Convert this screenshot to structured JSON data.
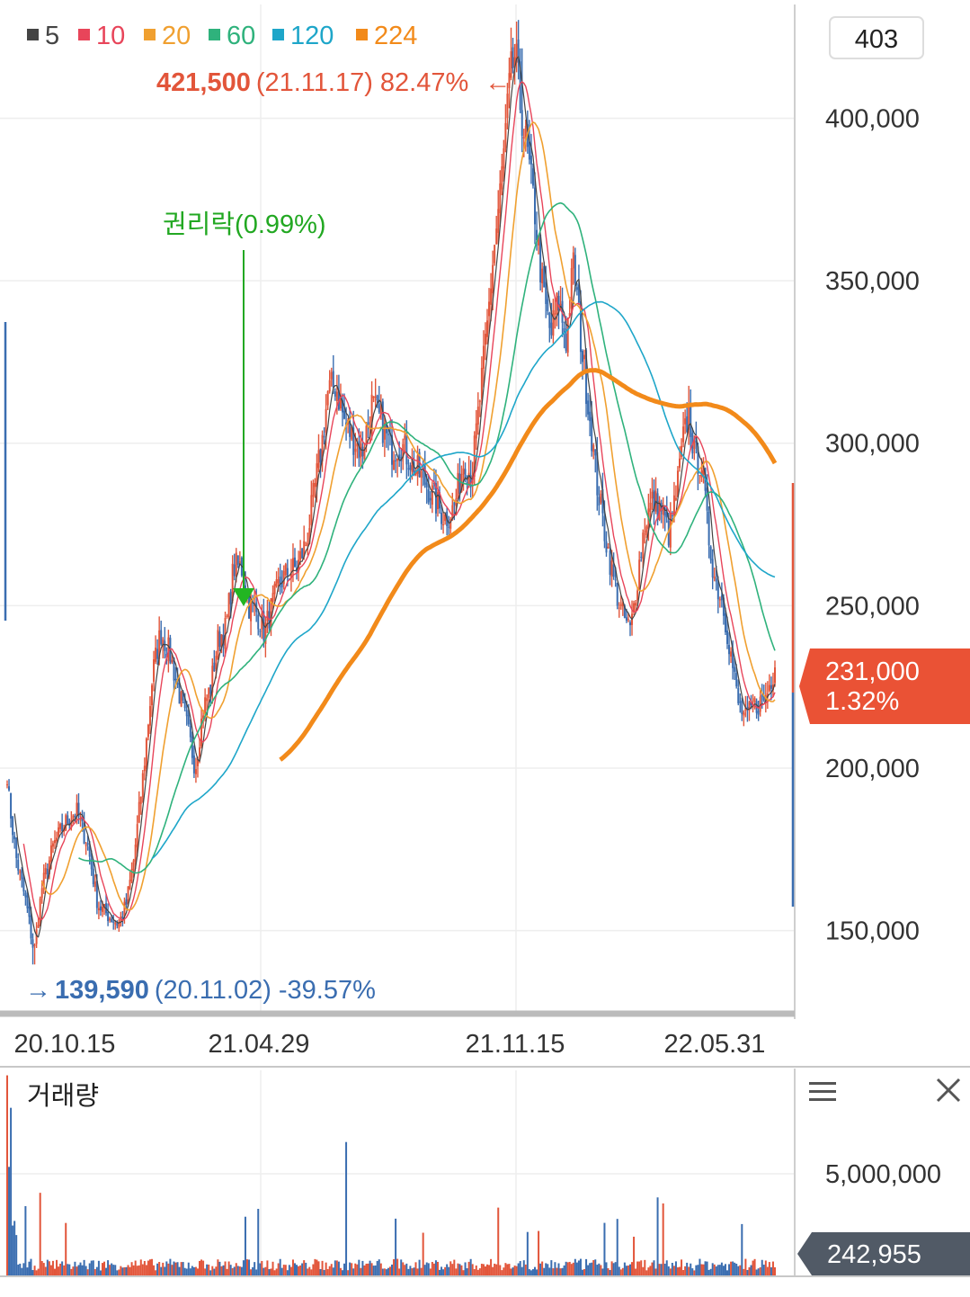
{
  "chart_data": {
    "type": "candlestick",
    "legend": [
      {
        "label": "5",
        "color": "#444444"
      },
      {
        "label": "10",
        "color": "#e8455a"
      },
      {
        "label": "20",
        "color": "#f0a030"
      },
      {
        "label": "60",
        "color": "#2fb27c"
      },
      {
        "label": "120",
        "color": "#1ea6c9"
      },
      {
        "label": "224",
        "color": "#f28a1a"
      }
    ],
    "indicator_box": "403",
    "max_annotation": {
      "value": "421,500",
      "date": "(21.11.17)",
      "pct": "82.47%",
      "arrow": "←",
      "price": 421500
    },
    "min_annotation": {
      "arrow": "→",
      "value": "139,590",
      "date": "(20.11.02)",
      "pct": "-39.57%",
      "price": 139590
    },
    "event": {
      "label": "권리락(0.99%)",
      "date": "21.04.29"
    },
    "y_ticks": [
      "400,000",
      "350,000",
      "300,000",
      "250,000",
      "200,000",
      "150,000"
    ],
    "y_tick_values": [
      400000,
      350000,
      300000,
      250000,
      200000,
      150000
    ],
    "ylim": [
      125000,
      435000
    ],
    "x_ticks": [
      "20.10.15",
      "21.04.29",
      "21.11.15",
      "22.05.31"
    ],
    "current": {
      "price": "231,000",
      "change": "1.32%",
      "value": 231000
    },
    "close_path": [
      [
        0.0,
        195000
      ],
      [
        0.012,
        172000
      ],
      [
        0.025,
        158000
      ],
      [
        0.035,
        143000
      ],
      [
        0.045,
        163000
      ],
      [
        0.06,
        176000
      ],
      [
        0.075,
        183000
      ],
      [
        0.09,
        187000
      ],
      [
        0.105,
        176000
      ],
      [
        0.118,
        158000
      ],
      [
        0.13,
        155000
      ],
      [
        0.145,
        152000
      ],
      [
        0.155,
        158000
      ],
      [
        0.165,
        172000
      ],
      [
        0.178,
        200000
      ],
      [
        0.19,
        230000
      ],
      [
        0.2,
        242000
      ],
      [
        0.212,
        235000
      ],
      [
        0.222,
        225000
      ],
      [
        0.235,
        212000
      ],
      [
        0.245,
        200000
      ],
      [
        0.255,
        218000
      ],
      [
        0.265,
        225000
      ],
      [
        0.275,
        240000
      ],
      [
        0.285,
        243000
      ],
      [
        0.295,
        262000
      ],
      [
        0.305,
        262000
      ],
      [
        0.315,
        250000
      ],
      [
        0.325,
        248000
      ],
      [
        0.335,
        242000
      ],
      [
        0.345,
        250000
      ],
      [
        0.355,
        257000
      ],
      [
        0.365,
        260000
      ],
      [
        0.378,
        262000
      ],
      [
        0.39,
        270000
      ],
      [
        0.4,
        285000
      ],
      [
        0.41,
        300000
      ],
      [
        0.418,
        316000
      ],
      [
        0.428,
        318000
      ],
      [
        0.44,
        306000
      ],
      [
        0.452,
        301000
      ],
      [
        0.462,
        297000
      ],
      [
        0.475,
        312000
      ],
      [
        0.488,
        306000
      ],
      [
        0.5,
        298000
      ],
      [
        0.512,
        300000
      ],
      [
        0.522,
        296000
      ],
      [
        0.532,
        292000
      ],
      [
        0.545,
        288000
      ],
      [
        0.558,
        282000
      ],
      [
        0.57,
        277000
      ],
      [
        0.582,
        280000
      ],
      [
        0.595,
        295000
      ],
      [
        0.605,
        290000
      ],
      [
        0.615,
        312000
      ],
      [
        0.625,
        335000
      ],
      [
        0.632,
        355000
      ],
      [
        0.64,
        372000
      ],
      [
        0.648,
        392000
      ],
      [
        0.655,
        412000
      ],
      [
        0.662,
        420000
      ],
      [
        0.668,
        405000
      ],
      [
        0.678,
        388000
      ],
      [
        0.688,
        370000
      ],
      [
        0.698,
        346000
      ],
      [
        0.708,
        333000
      ],
      [
        0.718,
        344000
      ],
      [
        0.728,
        332000
      ],
      [
        0.738,
        356000
      ],
      [
        0.748,
        330000
      ],
      [
        0.758,
        310000
      ],
      [
        0.768,
        288000
      ],
      [
        0.778,
        273000
      ],
      [
        0.79,
        258000
      ],
      [
        0.8,
        248000
      ],
      [
        0.812,
        242000
      ],
      [
        0.82,
        257000
      ],
      [
        0.83,
        275000
      ],
      [
        0.84,
        282000
      ],
      [
        0.852,
        280000
      ],
      [
        0.862,
        272000
      ],
      [
        0.872,
        285000
      ],
      [
        0.88,
        300000
      ],
      [
        0.888,
        310000
      ],
      [
        0.895,
        296000
      ],
      [
        0.905,
        294000
      ],
      [
        0.912,
        274000
      ],
      [
        0.922,
        258000
      ],
      [
        0.932,
        251000
      ],
      [
        0.942,
        236000
      ],
      [
        0.952,
        220000
      ],
      [
        0.962,
        215000
      ],
      [
        0.972,
        219000
      ],
      [
        0.98,
        220000
      ],
      [
        0.988,
        222000
      ],
      [
        1.0,
        231000
      ]
    ],
    "volume": {
      "label": "거래량",
      "y_tick": "5,000,000",
      "y_tick_value": 5000000,
      "current": "242,955",
      "current_value": 242955,
      "ymax": 6150000
    }
  }
}
